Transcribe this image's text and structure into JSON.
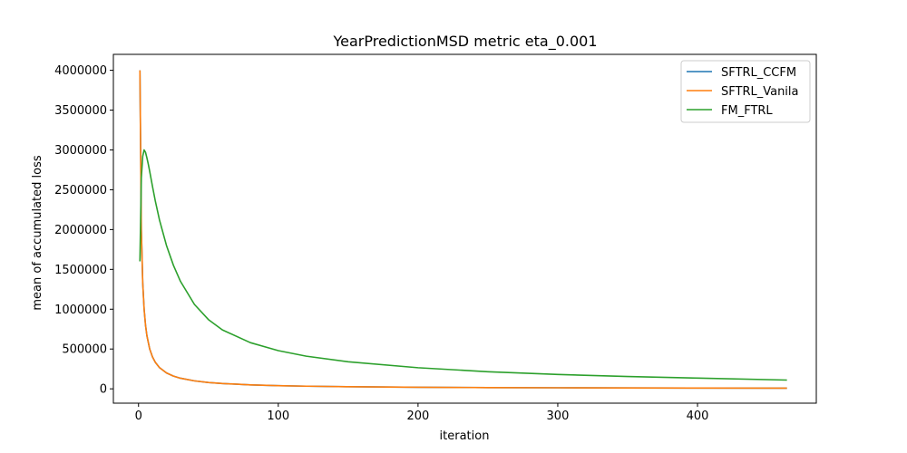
{
  "chart_data": {
    "type": "line",
    "title": "YearPredictionMSD metric eta_0.001",
    "xlabel": "iteration",
    "ylabel": "mean of accumulated loss",
    "xlim": [
      -18,
      485
    ],
    "ylim": [
      -180000,
      4200000
    ],
    "xticks": [
      0,
      100,
      200,
      300,
      400
    ],
    "yticks": [
      0,
      500000,
      1000000,
      1500000,
      2000000,
      2500000,
      3000000,
      3500000,
      4000000
    ],
    "grid": false,
    "legend_position": "upper-right",
    "series": [
      {
        "name": "SFTRL_CCFM",
        "color": "#1f77b4",
        "x": [
          1,
          2,
          3,
          4,
          5,
          6,
          8,
          10,
          12,
          15,
          20,
          25,
          30,
          40,
          50,
          60,
          80,
          100,
          120,
          150,
          200,
          250,
          300,
          350,
          400,
          464
        ],
        "y": [
          4000000,
          2000000,
          1333333,
          1000000,
          800000,
          666667,
          500000,
          400000,
          333333,
          266667,
          200000,
          160000,
          133333,
          100000,
          80000,
          66667,
          50000,
          40000,
          33333,
          26667,
          20000,
          16000,
          13333,
          11429,
          10000,
          8621
        ]
      },
      {
        "name": "SFTRL_Vanila",
        "color": "#ff7f0e",
        "x": [
          1,
          2,
          3,
          4,
          5,
          6,
          8,
          10,
          12,
          15,
          20,
          25,
          30,
          40,
          50,
          60,
          80,
          100,
          120,
          150,
          200,
          250,
          300,
          350,
          400,
          464
        ],
        "y": [
          4000000,
          2000000,
          1333333,
          1000000,
          800000,
          666667,
          500000,
          400000,
          333333,
          266667,
          200000,
          160000,
          133333,
          100000,
          80000,
          66667,
          50000,
          40000,
          33333,
          26667,
          20000,
          16000,
          13333,
          11429,
          10000,
          8621
        ]
      },
      {
        "name": "FM_FTRL",
        "color": "#2ca02c",
        "x": [
          1,
          2,
          3,
          4,
          5,
          6,
          7,
          8,
          10,
          12,
          15,
          20,
          25,
          30,
          40,
          50,
          60,
          80,
          100,
          120,
          150,
          200,
          250,
          300,
          350,
          400,
          464
        ],
        "y": [
          1600000,
          2650000,
          2920000,
          3000000,
          2970000,
          2900000,
          2820000,
          2730000,
          2540000,
          2360000,
          2120000,
          1800000,
          1550000,
          1350000,
          1060000,
          870000,
          740000,
          580000,
          480000,
          410000,
          340000,
          265000,
          215000,
          180000,
          155000,
          135000,
          110000
        ]
      }
    ]
  }
}
